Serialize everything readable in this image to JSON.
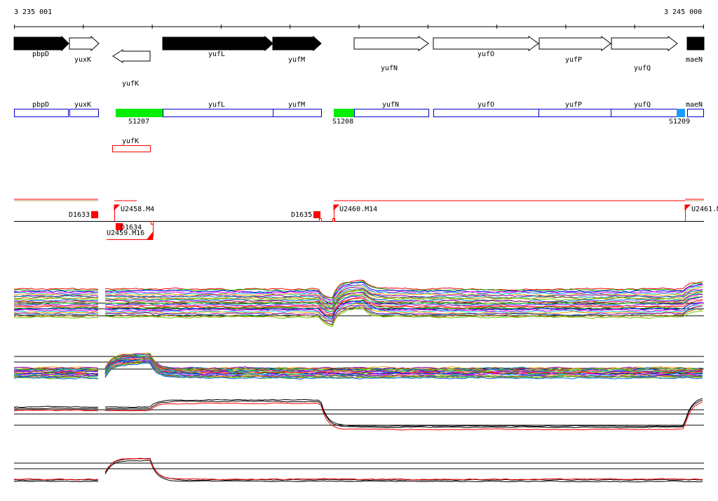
{
  "coords": {
    "start": "3 235 001",
    "end": "3 245 000"
  },
  "colors": {
    "gene_dark": "#000000",
    "gene_light": "#ffffff",
    "segment_border": "#0000cc",
    "segment_green": "#00ee00",
    "segment_blue": "#1e9bff",
    "feature_red": "#ff0000"
  },
  "genes": {
    "forward": [
      {
        "name": "pbpD",
        "dark": true
      },
      {
        "name": "yuxK",
        "dark": false
      },
      {
        "name": "yufL",
        "dark": true
      },
      {
        "name": "yufM",
        "dark": true
      },
      {
        "name": "yufN",
        "dark": false
      },
      {
        "name": "yufO",
        "dark": false
      },
      {
        "name": "yufP",
        "dark": false
      },
      {
        "name": "yufQ",
        "dark": false
      },
      {
        "name": "maeN",
        "dark": true
      }
    ],
    "reverse": [
      {
        "name": "yufK",
        "dark": false
      }
    ]
  },
  "segments": {
    "genes": [
      "pbpD",
      "yuxK",
      "yufL",
      "yufM",
      "yufN",
      "yufO",
      "yufP",
      "yufQ",
      "maeN"
    ],
    "reverse_gene": "yufK",
    "markers": [
      "S1207",
      "S1208",
      "S1209"
    ]
  },
  "features": {
    "labels": [
      "D1633",
      "U2458.M4",
      "D1635",
      "U2460.M14",
      "U2461.M",
      "D1634",
      "U2459.M16"
    ]
  }
}
